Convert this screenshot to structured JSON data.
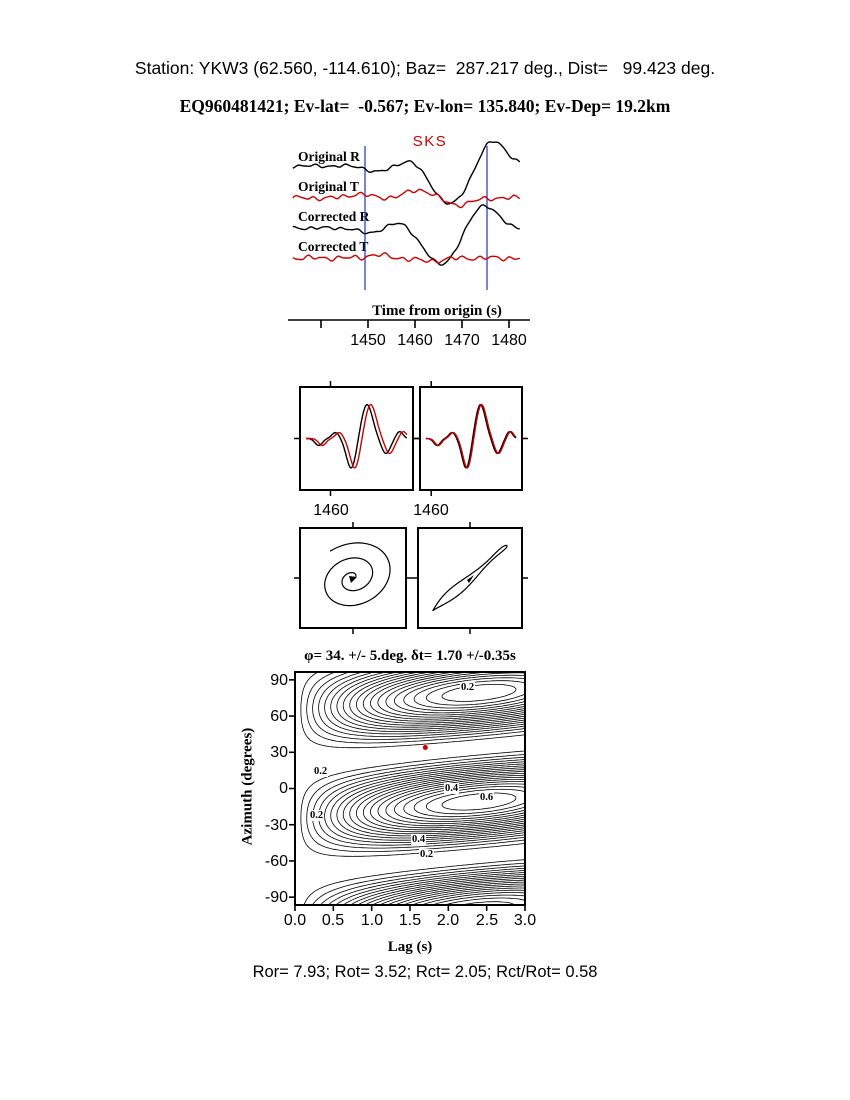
{
  "header": {
    "station_line": "Station: YKW3 (62.560, -114.610); Baz=  287.217 deg., Dist=   99.423 deg.",
    "event_line": "EQ960481421; Ev-lat=  -0.567; Ev-lon= 135.840; Ev-Dep= 19.2km"
  },
  "waveform_panel": {
    "phase_label": "SKS",
    "trace_labels": [
      "Original R",
      "Original T",
      "Corrected R",
      "Corrected T"
    ],
    "axis_title": "Time from origin (s)",
    "tick_labels": [
      "1450",
      "1460",
      "1470",
      "1480"
    ],
    "colors": {
      "radial_trace": "#000000",
      "transverse_trace": "#cc0000",
      "window_marker": "#2233bb",
      "phase_label": "#cc0000"
    }
  },
  "insets": {
    "left_tick_label": "1460",
    "right_tick_label": "1460"
  },
  "contour_panel": {
    "title": "φ= 34. +/- 5.deg. δt= 1.70 +/-0.35s",
    "ylabel": "Azimuth (degrees)",
    "xlabel": "Lag (s)",
    "yticks": [
      "90",
      "60",
      "30",
      "0",
      "-30",
      "-60",
      "-90"
    ],
    "xticks": [
      "0.0",
      "0.5",
      "1.0",
      "1.5",
      "2.0",
      "2.5",
      "3.0"
    ],
    "contour_labels": [
      "0.2",
      "0.2",
      "0.4",
      "0.6",
      "0.2",
      "0.4",
      "0.2"
    ],
    "best_fit_marker_color": "#cc0000"
  },
  "footer": {
    "stats_line": "Ror= 7.93; Rot= 3.52; Rct= 2.05; Rct/Rot= 0.58"
  },
  "splitting_result": {
    "phi_deg": 34,
    "phi_err_deg": 5,
    "dt_s": 1.7,
    "dt_err_s": 0.35,
    "Ror": 7.93,
    "Rot": 3.52,
    "Rct": 2.05,
    "Rct_over_Rot": 0.58
  },
  "chart_data": [
    {
      "type": "line",
      "title": "SKS splitting waveform comparison",
      "xlabel": "Time from origin (s)",
      "x_range": [
        1434,
        1482
      ],
      "xticks": [
        1450,
        1460,
        1470,
        1480
      ],
      "analysis_window_s": [
        1449.4,
        1475.4
      ],
      "phase_arrival_label": "SKS",
      "series": [
        {
          "name": "Original R",
          "color": "#000000",
          "description": "large SKS pulse: trough near 1467 s, peak near 1476 s"
        },
        {
          "name": "Original T",
          "color": "#cc0000",
          "description": "moderate transverse energy: peak near 1461 s, trough near 1469 s"
        },
        {
          "name": "Corrected R",
          "color": "#000000",
          "description": "large SKS pulse: trough near 1466 s, peak near 1475 s"
        },
        {
          "name": "Corrected T",
          "color": "#cc0000",
          "description": "near-flat noise after anisotropy correction"
        }
      ]
    },
    {
      "type": "heatmap",
      "subtype": "contour",
      "title": "φ= 34. +/- 5.deg. δt= 1.70 +/-0.35s",
      "xlabel": "Lag (s)",
      "ylabel": "Azimuth (degrees)",
      "xlim": [
        0.0,
        3.0
      ],
      "ylim": [
        -90,
        90
      ],
      "xticks": [
        0.0,
        0.5,
        1.0,
        1.5,
        2.0,
        2.5,
        3.0
      ],
      "yticks": [
        90,
        60,
        30,
        0,
        -30,
        -60,
        -90
      ],
      "labeled_contour_levels": [
        0.2,
        0.4,
        0.6
      ],
      "energy_maxima": [
        {
          "lag_s": 2.4,
          "azimuth_deg": -12
        },
        {
          "lag_s": 2.6,
          "azimuth_deg": 70
        }
      ],
      "best_fit": {
        "lag_s": 1.7,
        "lag_err_s": 0.35,
        "fast_azimuth_deg": 34,
        "azimuth_err_deg": 5
      },
      "marker": {
        "type": "dot",
        "color": "#cc0000",
        "lag_s": 1.7,
        "azimuth_deg": 34
      }
    }
  ]
}
